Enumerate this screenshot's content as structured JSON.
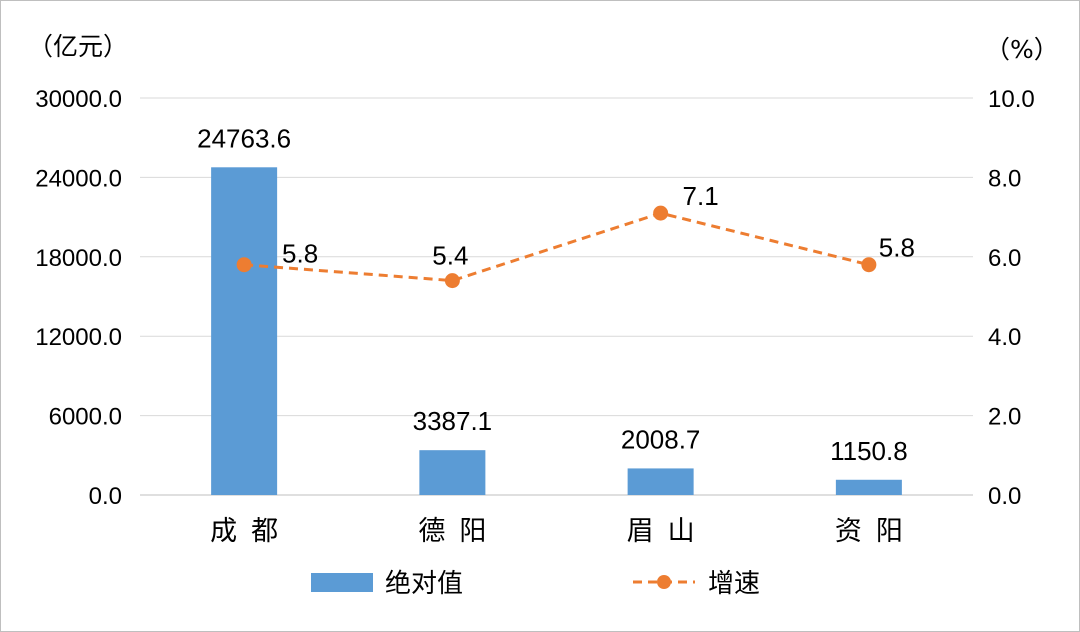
{
  "chart_data": {
    "type": "bar",
    "categories": [
      "成都",
      "德阳",
      "眉山",
      "资阳"
    ],
    "series": [
      {
        "name": "绝对值",
        "type": "bar",
        "axis": "left",
        "color": "#5b9bd5",
        "values": [
          24763.6,
          3387.1,
          2008.7,
          1150.8
        ],
        "labels": [
          "24763.6",
          "3387.1",
          "2008.7",
          "1150.8"
        ]
      },
      {
        "name": "增速",
        "type": "line",
        "axis": "right",
        "color": "#ed7d31",
        "line_style": "dashed",
        "values": [
          5.8,
          5.4,
          7.1,
          5.8
        ],
        "labels": [
          "5.8",
          "5.4",
          "7.1",
          "5.8"
        ]
      }
    ],
    "left_axis": {
      "unit": "（亿元）",
      "ylim": [
        0,
        30000
      ],
      "ticks": [
        "0.0",
        "6000.0",
        "12000.0",
        "18000.0",
        "24000.0",
        "30000.0"
      ]
    },
    "right_axis": {
      "unit": "（%）",
      "ylim": [
        0,
        10
      ],
      "ticks": [
        "0.0",
        "2.0",
        "4.0",
        "6.0",
        "8.0",
        "10.0"
      ]
    },
    "grid": true,
    "grid_color": "#d9d9d9",
    "legend_position": "bottom"
  }
}
